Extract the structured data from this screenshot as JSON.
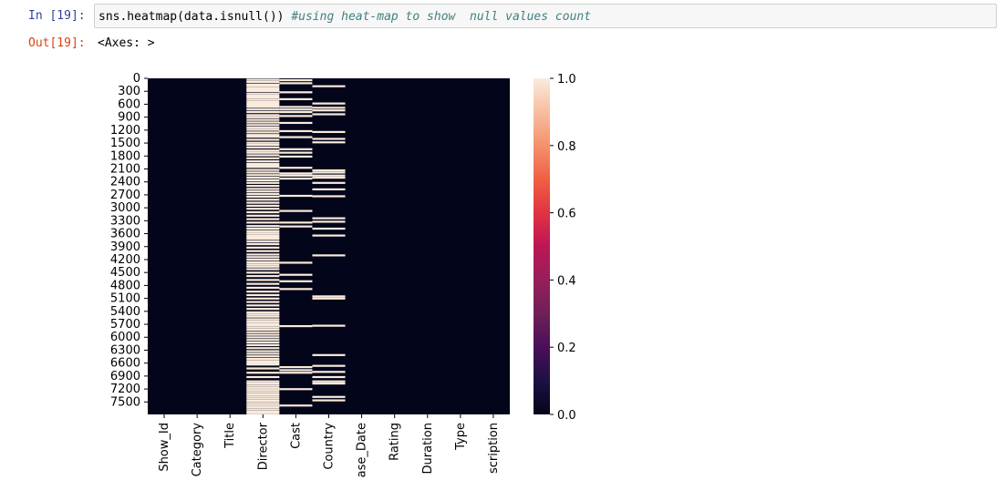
{
  "input_cell": {
    "prompt": "In [19]:",
    "code": "sns.heatmap(data.isnull()) ",
    "comment": "#using heat-map to show  null values count"
  },
  "output_cell": {
    "prompt": "Out[19]:",
    "text": "<Axes: >"
  },
  "chart_data": {
    "type": "heatmap",
    "title": "",
    "xlabel": "",
    "ylabel": "",
    "columns": [
      "Show_Id",
      "Category",
      "Title",
      "Director",
      "Cast",
      "Country",
      "Release_Date",
      "Rating",
      "Duration",
      "Type",
      "Description"
    ],
    "x_tick_labels": [
      "Show_Id",
      "Category",
      "Title",
      "Director",
      "Cast",
      "Country",
      "ase_Date",
      "Rating",
      "Duration",
      "Type",
      "scription"
    ],
    "y_tick_labels": [
      "0",
      "300",
      "600",
      "900",
      "1200",
      "1500",
      "1800",
      "2100",
      "2400",
      "2700",
      "3000",
      "3300",
      "3600",
      "3900",
      "4200",
      "4500",
      "4800",
      "5100",
      "5400",
      "5700",
      "6000",
      "6300",
      "6600",
      "6900",
      "7200",
      "7500"
    ],
    "row_count": 7789,
    "value_range": [
      0.0,
      1.0
    ],
    "colorbar_ticks": [
      "0.0",
      "0.2",
      "0.4",
      "0.6",
      "0.8",
      "1.0"
    ],
    "colormap": "rocket",
    "color_low": "#03051a",
    "color_high": "#faebdd",
    "null_rows": {
      "Director": [
        10,
        60,
        120,
        150,
        200,
        240,
        270,
        330,
        380,
        420,
        470,
        520,
        560,
        600,
        640,
        700,
        760,
        830,
        880,
        940,
        1000,
        1060,
        1120,
        1170,
        1230,
        1290,
        1330,
        1400,
        1470,
        1520,
        1580,
        1650,
        1700,
        1760,
        1830,
        1900,
        1960,
        1990,
        2030,
        2100,
        2160,
        2220,
        2280,
        2340,
        2400,
        2470,
        2540,
        2600,
        2660,
        2720,
        2790,
        2860,
        2930,
        3000,
        3080,
        3160,
        3240,
        3320,
        3400,
        3460,
        3520,
        3570,
        3620,
        3660,
        3700,
        3760,
        3820,
        3900,
        3980,
        4060,
        4120,
        4180,
        4240,
        4290,
        4340,
        4400,
        4480,
        4560,
        4650,
        4740,
        4830,
        4920,
        5000,
        5080,
        5160,
        5240,
        5320,
        5400,
        5450,
        5500,
        5560,
        5610,
        5660,
        5700,
        5750,
        5800,
        5860,
        5920,
        5980,
        6040,
        6100,
        6160,
        6230,
        6300,
        6360,
        6420,
        6480,
        6530,
        6570,
        6610,
        6700,
        6800,
        6900,
        7000,
        7050,
        7100,
        7150,
        7200,
        7250,
        7300,
        7350,
        7400,
        7450,
        7500,
        7550,
        7600,
        7650,
        7700,
        7740
      ],
      "Cast": [
        20,
        90,
        300,
        460,
        640,
        700,
        760,
        850,
        1010,
        1200,
        1340,
        1620,
        1700,
        1790,
        2050,
        2180,
        2230,
        2300,
        2700,
        3050,
        3320,
        3410,
        4250,
        4530,
        4680,
        4860,
        5720,
        6670,
        6740,
        6800,
        7180,
        7560
      ],
      "Country": [
        160,
        560,
        660,
        720,
        810,
        1220,
        1380,
        1460,
        2110,
        2160,
        2230,
        2280,
        2400,
        2550,
        2710,
        3220,
        3300,
        3460,
        3620,
        4080,
        5030,
        5080,
        5710,
        6390,
        6640,
        6780,
        6900,
        7000,
        7050,
        7360,
        7440
      ]
    }
  }
}
